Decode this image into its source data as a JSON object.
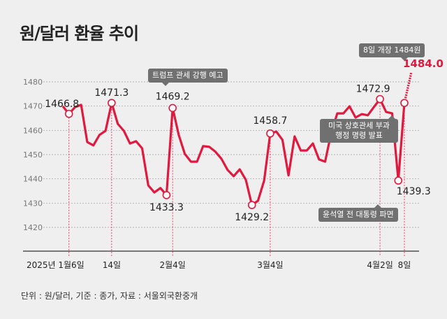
{
  "title": "원/달러 환율 추이",
  "source_note": "단위 : 원/달러, 기준 : 종가, 자료 : 서울외국환중개",
  "colors": {
    "line": "#e0193f",
    "grid": "#9a9a9a",
    "background": "#efefef",
    "annotation": "#707070"
  },
  "chart_data": {
    "type": "line",
    "title": "원/달러 환율 추이",
    "ylim": [
      1410,
      1485
    ],
    "yticks": [
      1420,
      1430,
      1440,
      1450,
      1460,
      1470,
      1480
    ],
    "grid": true,
    "values": [
      1469.9,
      1466.8,
      1469.6,
      1470.5,
      1455.2,
      1453.8,
      1458.1,
      1459.8,
      1471.3,
      1462.7,
      1459.8,
      1454.6,
      1455.5,
      1452.6,
      1437.3,
      1434.4,
      1436.2,
      1433.3,
      1469.2,
      1458.1,
      1450.3,
      1447.1,
      1447.1,
      1453.5,
      1453.2,
      1451.2,
      1448.3,
      1443.7,
      1441.1,
      1443.9,
      1439.6,
      1429.2,
      1431.0,
      1439.3,
      1458.7,
      1459.5,
      1456.1,
      1441.4,
      1457.5,
      1451.7,
      1451.7,
      1454.6,
      1448.0,
      1447.1,
      1458.9,
      1467.0,
      1467.0,
      1469.9,
      1465.3,
      1466.7,
      1466.2,
      1469.6,
      1472.9,
      1467.6,
      1467.0,
      1439.3,
      1471.3
    ],
    "projected": {
      "label": "1484.0",
      "value": 1484.0
    },
    "xticks": [
      {
        "label": "2025년 1월6일",
        "index": 1
      },
      {
        "label": "14일",
        "index": 8
      },
      {
        "label": "2월4일",
        "index": 18
      },
      {
        "label": "3월4일",
        "index": 34
      },
      {
        "label": "4월2일",
        "index": 52
      },
      {
        "label": "8일",
        "index": 56
      }
    ],
    "point_labels": [
      {
        "index": 1,
        "label": "1466.8"
      },
      {
        "index": 8,
        "label": "1471.3"
      },
      {
        "index": 17,
        "label": "1433.3"
      },
      {
        "index": 18,
        "label": "1469.2"
      },
      {
        "index": 31,
        "label": "1429.2"
      },
      {
        "index": 34,
        "label": "1458.7"
      },
      {
        "index": 52,
        "label": "1472.9"
      },
      {
        "index": 55,
        "label": "1439.3"
      },
      {
        "index": 56,
        "label": ""
      }
    ],
    "annotations": [
      "트럼프 관세 강행 예고",
      "미국 상호관세 부과 행정 명령 발표",
      "윤석열 전 대통령 파면",
      "8일 개장 1484원"
    ]
  }
}
